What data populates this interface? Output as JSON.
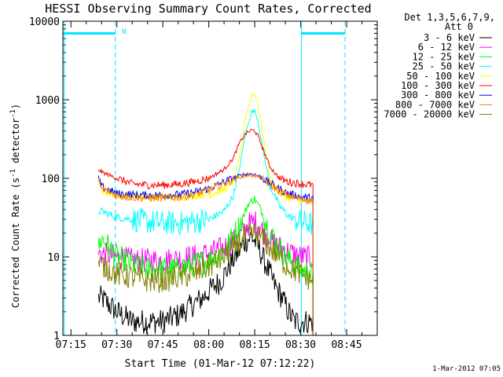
{
  "chart_data": {
    "type": "line",
    "title": "HESSI Observing Summary Count Rates, Corrected",
    "xlabel": "Start Time (01-Mar-12 07:12:22)",
    "ylabel_main": "Corrected Count Rate (s",
    "ylabel_sup1": "-1",
    "ylabel_mid": " detector",
    "ylabel_sup2": "-1",
    "ylabel_end": ")",
    "y_scale": "log",
    "ylim": [
      1,
      10000
    ],
    "xlim_minutes": [
      72.37,
      175.0
    ],
    "x_ticks": [
      {
        "label": "07:15",
        "m": 75
      },
      {
        "label": "07:30",
        "m": 90
      },
      {
        "label": "07:45",
        "m": 105
      },
      {
        "label": "08:00",
        "m": 120
      },
      {
        "label": "08:15",
        "m": 135
      },
      {
        "label": "08:30",
        "m": 150
      },
      {
        "label": "08:45",
        "m": 165
      }
    ],
    "y_ticks": [
      {
        "label": "1",
        "v": 1
      },
      {
        "label": "10",
        "v": 10
      },
      {
        "label": "100",
        "v": 100
      },
      {
        "label": "1000",
        "v": 1000
      },
      {
        "label": "10000",
        "v": 10000
      }
    ],
    "legend_title_1": "Det 1,3,5,6,7,9,",
    "legend_title_2": "Att 0",
    "legend_position": "right",
    "timestamp": "1-Mar-2012 07:05",
    "night_marker": "N",
    "night_segments": [
      [
        72.37,
        89.5
      ],
      [
        150.2,
        164.5
      ]
    ],
    "night_level": 7000,
    "night_dashed_x": [
      89.5,
      164.5
    ],
    "night_solid_x": [
      72.8,
      150.2
    ],
    "series": [
      {
        "name": "3 - 6 keV",
        "color": "#000000",
        "x": [
          84,
          85,
          90,
          95,
          100,
          105,
          110,
          115,
          118,
          121,
          124,
          127,
          130,
          132,
          134,
          136,
          138,
          140,
          142,
          144,
          146,
          148,
          150,
          152,
          154
        ],
        "y": [
          3,
          3,
          2,
          1.5,
          1.5,
          1.5,
          1.8,
          2.5,
          3,
          4,
          5,
          8,
          12,
          16,
          18,
          14,
          9,
          6,
          4,
          3,
          2,
          1.5,
          1.5,
          1.5,
          1.5
        ]
      },
      {
        "name": "6 - 12 keV",
        "color": "#ff00ff",
        "x": [
          84,
          85,
          90,
          95,
          100,
          105,
          110,
          115,
          120,
          125,
          130,
          133,
          135,
          137,
          140,
          145,
          150,
          154
        ],
        "y": [
          11,
          11,
          10,
          9,
          9,
          9,
          9.5,
          10,
          11,
          13,
          18,
          26,
          28,
          24,
          16,
          12,
          10,
          9.5
        ]
      },
      {
        "name": "12 - 25 keV",
        "color": "#00ff00",
        "x": [
          84,
          85,
          87,
          90,
          95,
          100,
          105,
          110,
          115,
          120,
          125,
          130,
          133,
          135,
          137,
          140,
          145,
          150,
          154
        ],
        "y": [
          13,
          17,
          14,
          10,
          8,
          7,
          7,
          7,
          8,
          9,
          12,
          25,
          48,
          55,
          40,
          20,
          10,
          7,
          6
        ]
      },
      {
        "name": "25 - 50 keV",
        "color": "#00ffff",
        "x": [
          84,
          85,
          90,
          95,
          100,
          105,
          110,
          115,
          120,
          125,
          128,
          130,
          132,
          134,
          135,
          136,
          138,
          140,
          143,
          146,
          150,
          154
        ],
        "y": [
          38,
          38,
          32,
          30,
          28,
          27,
          27,
          28,
          30,
          38,
          60,
          130,
          380,
          700,
          720,
          560,
          200,
          80,
          45,
          33,
          28,
          26
        ]
      },
      {
        "name": "50 - 100 keV",
        "color": "#ffff00",
        "x": [
          84,
          85,
          90,
          95,
          100,
          105,
          110,
          115,
          120,
          125,
          128,
          130,
          132,
          134,
          135,
          136,
          138,
          140,
          143,
          146,
          150,
          154
        ],
        "y": [
          95,
          70,
          62,
          60,
          58,
          58,
          58,
          60,
          62,
          72,
          90,
          180,
          600,
          1150,
          1200,
          900,
          300,
          100,
          65,
          55,
          52,
          50
        ]
      },
      {
        "name": "100 - 300 keV",
        "color": "#ff0000",
        "x": [
          84,
          85,
          90,
          95,
          100,
          105,
          110,
          115,
          120,
          125,
          128,
          130,
          132,
          134,
          135,
          136,
          138,
          140,
          143,
          146,
          150,
          154
        ],
        "y": [
          130,
          120,
          100,
          85,
          82,
          82,
          84,
          90,
          100,
          130,
          180,
          280,
          370,
          410,
          400,
          350,
          220,
          140,
          100,
          90,
          85,
          82
        ]
      },
      {
        "name": "300 - 800 keV",
        "color": "#0000ff",
        "x": [
          84,
          85,
          90,
          95,
          100,
          105,
          110,
          115,
          120,
          125,
          130,
          133,
          135,
          137,
          140,
          145,
          150,
          154
        ],
        "y": [
          98,
          78,
          64,
          62,
          61,
          61,
          62,
          66,
          74,
          90,
          108,
          114,
          112,
          104,
          86,
          66,
          58,
          56
        ]
      },
      {
        "name": "800 - 7000 keV",
        "color": "#ff8000",
        "x": [
          84,
          85,
          90,
          95,
          100,
          105,
          110,
          115,
          120,
          125,
          130,
          133,
          135,
          137,
          140,
          145,
          150,
          154
        ],
        "y": [
          92,
          74,
          60,
          57,
          56,
          56,
          57,
          61,
          70,
          86,
          104,
          110,
          108,
          100,
          82,
          62,
          54,
          52
        ]
      },
      {
        "name": "7000 - 20000 keV",
        "color": "#808000",
        "x": [
          84,
          85,
          90,
          95,
          100,
          105,
          110,
          115,
          120,
          125,
          130,
          133,
          135,
          137,
          140,
          145,
          150,
          154
        ],
        "y": [
          8,
          8,
          6,
          5.5,
          5,
          5,
          5.5,
          6,
          7.5,
          10,
          15,
          19,
          20,
          18,
          13,
          8,
          6,
          5
        ]
      }
    ]
  }
}
